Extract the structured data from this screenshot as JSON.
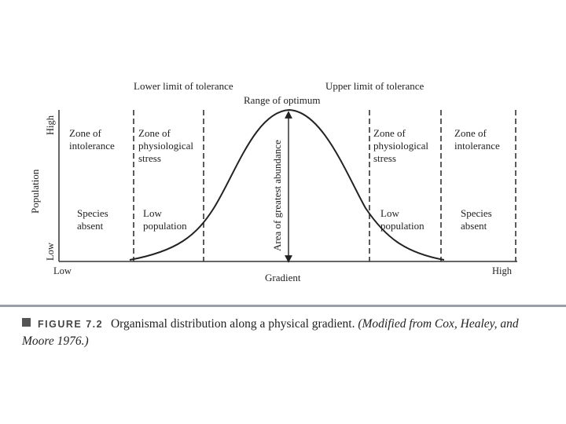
{
  "diagram": {
    "labels": {
      "lower_limit": "Lower limit of tolerance",
      "upper_limit": "Upper limit of tolerance",
      "range_optimum": "Range of optimum",
      "area_greatest": "Area of greatest abundance"
    },
    "y_axis": {
      "title": "Population",
      "high": "High",
      "low": "Low"
    },
    "x_axis": {
      "title": "Gradient",
      "low": "Low",
      "high": "High"
    },
    "zones": {
      "left_intolerance": [
        "Zone of",
        "intolerance"
      ],
      "left_stress": [
        "Zone of",
        "physiological",
        "stress"
      ],
      "left_absent": [
        "Species",
        "absent"
      ],
      "left_low_pop": [
        "Low",
        "population"
      ],
      "right_stress": [
        "Zone of",
        "physiological",
        "stress"
      ],
      "right_intolerance": [
        "Zone of",
        "intolerance"
      ],
      "right_low_pop": [
        "Low",
        "population"
      ],
      "right_absent": [
        "Species",
        "absent"
      ]
    }
  },
  "caption": {
    "figure_label": "FIGURE 7.2",
    "text": "Organismal distribution along a physical gradient.",
    "source": "(Modified from Cox, Healey, and Moore 1976.)"
  }
}
